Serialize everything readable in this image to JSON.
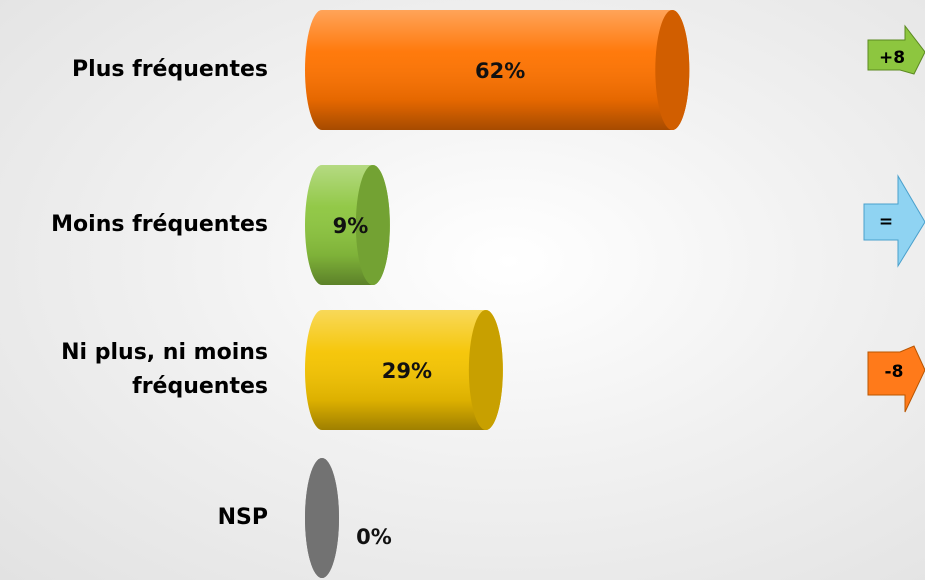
{
  "chart_data": {
    "type": "bar",
    "categories": [
      "Plus fréquentes",
      "Moins fréquentes",
      "Ni plus, ni moins fréquentes",
      "NSP"
    ],
    "values": [
      62,
      9,
      29,
      0
    ],
    "value_labels": [
      "62%",
      "9%",
      "29%",
      "0%"
    ],
    "colors": [
      "#ff7300",
      "#8dc63f",
      "#f5c400",
      "#8c8c8c"
    ],
    "changes": [
      "+8",
      "=",
      "-8"
    ]
  }
}
